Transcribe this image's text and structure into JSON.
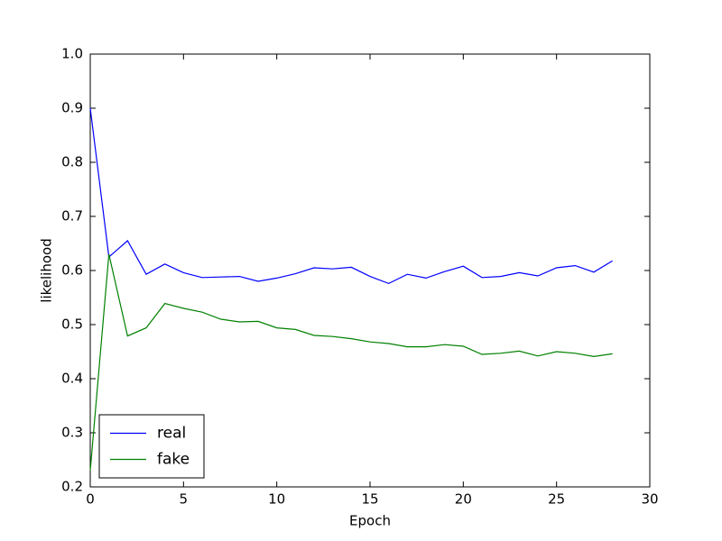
{
  "chart_data": {
    "type": "line",
    "x_label": "Epoch",
    "y_label": "likelihood",
    "x": [
      0,
      1,
      2,
      3,
      4,
      5,
      6,
      7,
      8,
      9,
      10,
      11,
      12,
      13,
      14,
      15,
      16,
      17,
      18,
      19,
      20,
      21,
      22,
      23,
      24,
      25,
      26,
      27,
      28
    ],
    "series": [
      {
        "name": "real",
        "color": "#0000ff",
        "values": [
          0.9,
          0.625,
          0.655,
          0.593,
          0.612,
          0.596,
          0.587,
          0.588,
          0.589,
          0.58,
          0.586,
          0.594,
          0.605,
          0.603,
          0.606,
          0.589,
          0.576,
          0.593,
          0.586,
          0.598,
          0.608,
          0.587,
          0.589,
          0.596,
          0.59,
          0.605,
          0.609,
          0.597,
          0.618
        ]
      },
      {
        "name": "fake",
        "color": "#008000",
        "values": [
          0.23,
          0.63,
          0.479,
          0.494,
          0.539,
          0.53,
          0.523,
          0.51,
          0.505,
          0.506,
          0.494,
          0.491,
          0.48,
          0.478,
          0.474,
          0.468,
          0.465,
          0.459,
          0.459,
          0.463,
          0.46,
          0.445,
          0.447,
          0.451,
          0.442,
          0.45,
          0.447,
          0.441,
          0.446
        ]
      }
    ],
    "xlim": [
      0,
      30
    ],
    "xticks": [
      0,
      5,
      10,
      15,
      20,
      25,
      30
    ],
    "ylim": [
      0.2,
      1.0
    ],
    "yticks": [
      0.2,
      0.3,
      0.4,
      0.5,
      0.6,
      0.7,
      0.8,
      0.9,
      {
        "value": 1.0,
        "label": "1.0"
      }
    ],
    "legend": "lower left"
  }
}
